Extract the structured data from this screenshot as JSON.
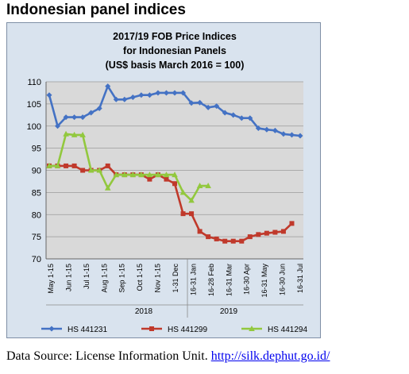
{
  "page": {
    "heading": "Indonesian panel indices",
    "source_prefix": "Data Source: License Information Unit. ",
    "source_link": "http://silk.dephut.go.id/"
  },
  "chart_data": {
    "type": "line",
    "title_lines": [
      "2017/19 FOB Price Indices",
      "for Indonesian Panels",
      "(US$ basis March 2016 = 100)"
    ],
    "ylim": [
      70,
      110
    ],
    "yticks": [
      70,
      75,
      80,
      85,
      90,
      95,
      100,
      105,
      110
    ],
    "grid": true,
    "legend_position": "bottom",
    "x_tick_labels": [
      "May 1-15",
      "Jun 1-15",
      "Jul 1-15",
      "Aug 1-15",
      "Sep 1-15",
      "Oct 1-15",
      "Nov 1-15",
      "1-31 Dec",
      "16-31 Jan",
      "16-28 Feb",
      "16-31 Mar",
      "16-30 Apr",
      "16-31 May",
      "16-30 Jun",
      "16-31 Jul"
    ],
    "year_labels": [
      "2018",
      "2019"
    ],
    "colors": {
      "plot_bg": "#d9d9d9",
      "frame_bg": "#d9e3ee",
      "grid": "#9a9a9a"
    },
    "series": [
      {
        "name": "HS 441231",
        "color": "#4472c4",
        "marker": "diamond",
        "values": [
          107,
          100,
          102,
          102,
          102,
          103,
          104,
          109,
          106,
          106,
          106.5,
          107,
          107,
          107.5,
          107.5,
          107.5,
          107.5,
          105.2,
          105.3,
          104.2,
          104.5,
          103,
          102.5,
          101.8,
          101.8,
          99.5,
          99.2,
          99,
          98.2,
          98,
          97.8
        ]
      },
      {
        "name": "HS 441299",
        "color": "#c0392b",
        "marker": "square",
        "values": [
          91,
          91,
          91,
          91,
          90,
          90,
          90,
          91,
          89,
          89,
          89,
          89,
          88,
          89,
          88,
          87,
          80.2,
          80.2,
          76.2,
          75,
          74.5,
          74,
          74,
          74,
          75,
          75.5,
          75.8,
          76,
          76.2,
          78
        ]
      },
      {
        "name": "HS 441294",
        "color": "#92c83e",
        "marker": "triangle",
        "values": [
          91,
          91,
          98.2,
          98,
          98,
          90,
          90,
          86,
          89,
          89,
          89,
          89,
          89,
          89,
          89,
          89,
          85,
          83.2,
          86.5,
          86.5
        ]
      }
    ]
  }
}
